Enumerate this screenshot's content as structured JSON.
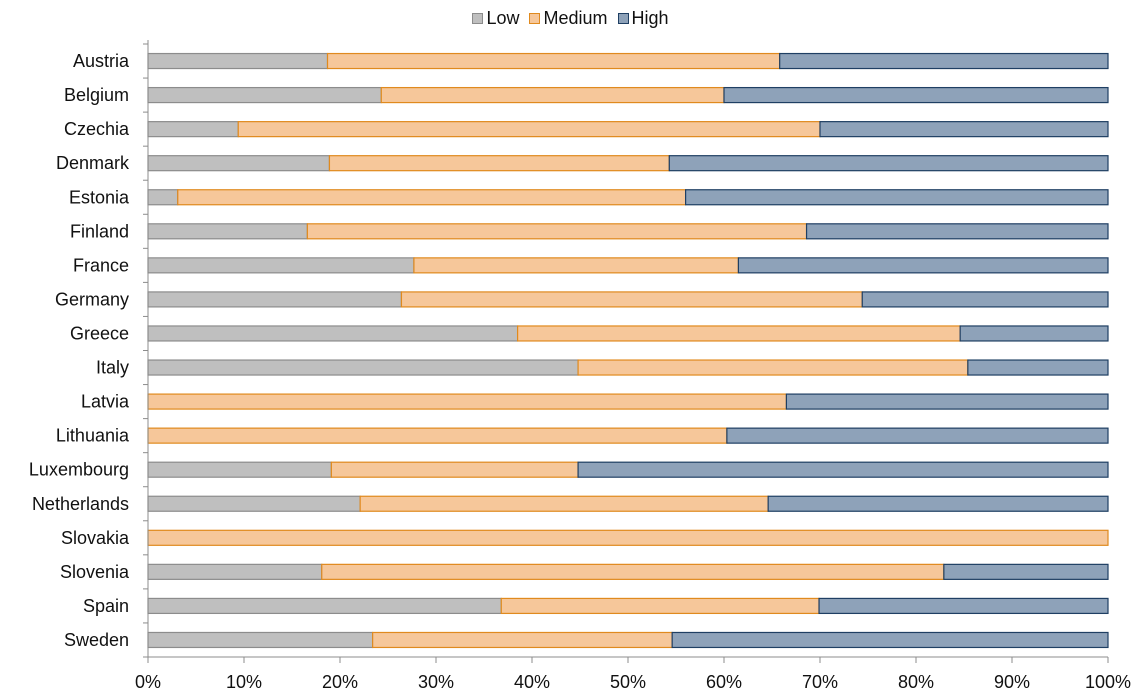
{
  "chart_data": {
    "type": "bar",
    "orientation": "horizontal",
    "stacked": true,
    "categories": [
      "Austria",
      "Belgium",
      "Czechia",
      "Denmark",
      "Estonia",
      "Finland",
      "France",
      "Germany",
      "Greece",
      "Italy",
      "Latvia",
      "Lithuania",
      "Luxembourg",
      "Netherlands",
      "Slovakia",
      "Slovenia",
      "Spain",
      "Sweden"
    ],
    "series": [
      {
        "name": "Low",
        "color": "#bfbfbf",
        "border": "#8c8c8c",
        "values": [
          18.7,
          24.3,
          9.4,
          18.9,
          3.1,
          16.6,
          27.7,
          26.4,
          38.5,
          44.8,
          0,
          0,
          19.1,
          22.1,
          0,
          18.1,
          36.8,
          23.4
        ]
      },
      {
        "name": "Medium",
        "color": "#f6c79a",
        "border": "#e08a1e",
        "values": [
          47.1,
          35.7,
          60.6,
          35.4,
          52.9,
          52.0,
          33.8,
          48.0,
          46.1,
          40.6,
          66.5,
          60.3,
          25.7,
          42.5,
          100,
          64.8,
          33.1,
          31.2
        ]
      },
      {
        "name": "High",
        "color": "#8ea2b9",
        "border": "#1f3f63",
        "values": [
          34.2,
          40.0,
          30.0,
          45.7,
          44.0,
          31.4,
          38.5,
          25.6,
          15.4,
          14.6,
          33.5,
          39.7,
          55.2,
          35.4,
          0,
          17.1,
          30.1,
          45.4
        ]
      }
    ],
    "x_ticks": [
      "0%",
      "10%",
      "20%",
      "30%",
      "40%",
      "50%",
      "60%",
      "70%",
      "80%",
      "90%",
      "100%"
    ],
    "xlim": [
      0,
      100
    ],
    "grid": false,
    "legend_position": "top-center"
  }
}
